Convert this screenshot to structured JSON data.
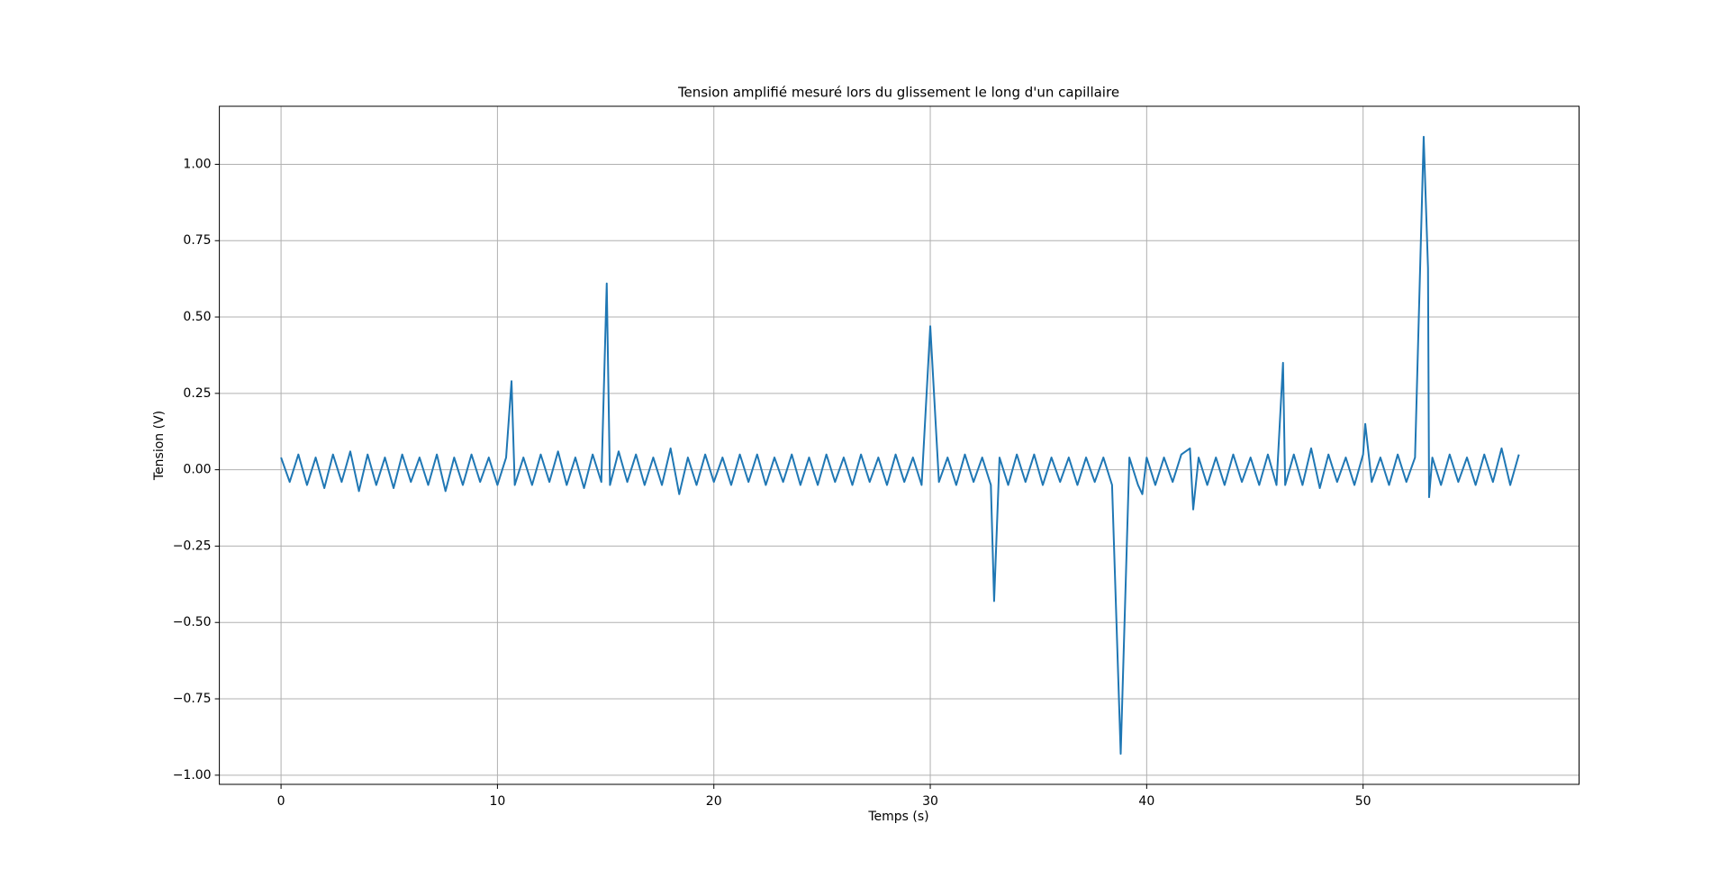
{
  "chart_data": {
    "type": "line",
    "title": "Tension amplifié mesuré lors du glissement le long d'un capillaire",
    "xlabel": "Temps (s)",
    "ylabel": "Tension (V)",
    "color": "#1f77b4",
    "grid": true,
    "xlim": [
      -2.85,
      59.98
    ],
    "ylim": [
      -1.03,
      1.19
    ],
    "xticks": [
      0,
      10,
      20,
      30,
      40,
      50
    ],
    "yticks": [
      {
        "value": -1,
        "label": "−1.00"
      },
      {
        "value": -0.75,
        "label": "−0.75"
      },
      {
        "value": -0.5,
        "label": "−0.50"
      },
      {
        "value": -0.25,
        "label": "−0.25"
      },
      {
        "value": 0,
        "label": "0.00"
      },
      {
        "value": 0.25,
        "label": "0.25"
      },
      {
        "value": 0.5,
        "label": "0.50"
      },
      {
        "value": 0.75,
        "label": "0.75"
      },
      {
        "value": 1,
        "label": "1.00"
      }
    ],
    "x": [
      0,
      0.4,
      0.8,
      1.2,
      1.6,
      2,
      2.4,
      2.8,
      3.2,
      3.6,
      4,
      4.4,
      4.8,
      5.2,
      5.6,
      6,
      6.4,
      6.8,
      7.2,
      7.6,
      8,
      8.4,
      8.8,
      9.2,
      9.6,
      10,
      10.4,
      10.65,
      10.8,
      11.2,
      11.6,
      12,
      12.4,
      12.8,
      13.2,
      13.6,
      14,
      14.4,
      14.8,
      15.05,
      15.2,
      15.6,
      16,
      16.4,
      16.8,
      17.2,
      17.6,
      18,
      18.4,
      18.8,
      19.2,
      19.6,
      20,
      20.4,
      20.8,
      21.2,
      21.6,
      22,
      22.4,
      22.8,
      23.2,
      23.6,
      24,
      24.4,
      24.8,
      25.2,
      25.6,
      26,
      26.4,
      26.8,
      27.2,
      27.6,
      28,
      28.4,
      28.8,
      29.2,
      29.6,
      30,
      30.4,
      30.8,
      31.2,
      31.6,
      32,
      32.4,
      32.8,
      32.95,
      33.2,
      33.6,
      34,
      34.4,
      34.8,
      35.2,
      35.6,
      36,
      36.4,
      36.8,
      37.2,
      37.6,
      38,
      38.4,
      38.8,
      39.2,
      39.6,
      39.8,
      40,
      40.4,
      40.8,
      41.2,
      41.6,
      42,
      42.15,
      42.4,
      42.8,
      43.2,
      43.6,
      44,
      44.4,
      44.8,
      45.2,
      45.6,
      46,
      46.3,
      46.4,
      46.8,
      47.2,
      47.6,
      48,
      48.4,
      48.8,
      49.2,
      49.6,
      50,
      50.1,
      50.4,
      50.8,
      51.2,
      51.6,
      52,
      52.4,
      52.8,
      53,
      53.05,
      53.2,
      53.6,
      54,
      54.4,
      54.8,
      55.2,
      55.6,
      56,
      56.4,
      56.8,
      57.2
    ],
    "values": [
      0.04,
      -0.04,
      0.05,
      -0.05,
      0.04,
      -0.06,
      0.05,
      -0.04,
      0.06,
      -0.07,
      0.05,
      -0.05,
      0.04,
      -0.06,
      0.05,
      -0.04,
      0.04,
      -0.05,
      0.05,
      -0.07,
      0.04,
      -0.05,
      0.05,
      -0.04,
      0.04,
      -0.05,
      0.04,
      0.29,
      -0.05,
      0.04,
      -0.05,
      0.05,
      -0.04,
      0.06,
      -0.05,
      0.04,
      -0.06,
      0.05,
      -0.04,
      0.61,
      -0.05,
      0.06,
      -0.04,
      0.05,
      -0.05,
      0.04,
      -0.05,
      0.07,
      -0.08,
      0.04,
      -0.05,
      0.05,
      -0.04,
      0.04,
      -0.05,
      0.05,
      -0.04,
      0.05,
      -0.05,
      0.04,
      -0.04,
      0.05,
      -0.05,
      0.04,
      -0.05,
      0.05,
      -0.04,
      0.04,
      -0.05,
      0.05,
      -0.04,
      0.04,
      -0.05,
      0.05,
      -0.04,
      0.04,
      -0.05,
      0.47,
      -0.04,
      0.04,
      -0.05,
      0.05,
      -0.04,
      0.04,
      -0.05,
      -0.43,
      0.04,
      -0.05,
      0.05,
      -0.04,
      0.05,
      -0.05,
      0.04,
      -0.04,
      0.04,
      -0.05,
      0.04,
      -0.04,
      0.04,
      -0.05,
      -0.93,
      0.04,
      -0.05,
      -0.08,
      0.04,
      -0.05,
      0.04,
      -0.04,
      0.05,
      0.07,
      -0.13,
      0.04,
      -0.05,
      0.04,
      -0.05,
      0.05,
      -0.04,
      0.04,
      -0.05,
      0.05,
      -0.05,
      0.35,
      -0.05,
      0.05,
      -0.05,
      0.07,
      -0.06,
      0.05,
      -0.04,
      0.04,
      -0.05,
      0.05,
      0.15,
      -0.04,
      0.04,
      -0.05,
      0.05,
      -0.04,
      0.04,
      1.09,
      0.66,
      -0.09,
      0.04,
      -0.05,
      0.05,
      -0.04,
      0.04,
      -0.05,
      0.05,
      -0.04,
      0.07,
      -0.05,
      0.05
    ]
  }
}
